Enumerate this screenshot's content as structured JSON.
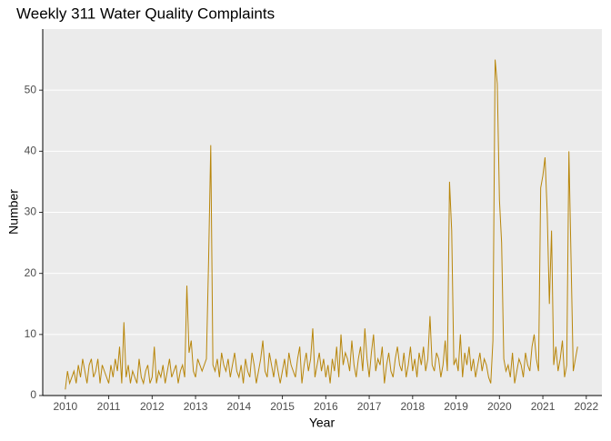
{
  "chart_data": {
    "type": "line",
    "title": "Weekly 311 Water Quality Complaints",
    "xlabel": "Year",
    "ylabel": "Number",
    "x": [
      2010.0,
      2010.05,
      2010.1,
      2010.15,
      2010.2,
      2010.25,
      2010.3,
      2010.35,
      2010.4,
      2010.45,
      2010.5,
      2010.55,
      2010.6,
      2010.65,
      2010.7,
      2010.75,
      2010.8,
      2010.85,
      2010.9,
      2010.95,
      2011.0,
      2011.05,
      2011.1,
      2011.15,
      2011.2,
      2011.25,
      2011.3,
      2011.35,
      2011.4,
      2011.45,
      2011.5,
      2011.55,
      2011.6,
      2011.65,
      2011.7,
      2011.75,
      2011.8,
      2011.85,
      2011.9,
      2011.95,
      2012.0,
      2012.05,
      2012.1,
      2012.15,
      2012.2,
      2012.25,
      2012.3,
      2012.35,
      2012.4,
      2012.45,
      2012.5,
      2012.55,
      2012.6,
      2012.65,
      2012.7,
      2012.75,
      2012.8,
      2012.85,
      2012.9,
      2012.95,
      2013.0,
      2013.05,
      2013.1,
      2013.15,
      2013.2,
      2013.25,
      2013.3,
      2013.35,
      2013.4,
      2013.45,
      2013.5,
      2013.55,
      2013.6,
      2013.65,
      2013.7,
      2013.75,
      2013.8,
      2013.85,
      2013.9,
      2013.95,
      2014.0,
      2014.05,
      2014.1,
      2014.15,
      2014.2,
      2014.25,
      2014.3,
      2014.35,
      2014.4,
      2014.45,
      2014.5,
      2014.55,
      2014.6,
      2014.65,
      2014.7,
      2014.75,
      2014.8,
      2014.85,
      2014.9,
      2014.95,
      2015.0,
      2015.05,
      2015.1,
      2015.15,
      2015.2,
      2015.25,
      2015.3,
      2015.35,
      2015.4,
      2015.45,
      2015.5,
      2015.55,
      2015.6,
      2015.65,
      2015.7,
      2015.75,
      2015.8,
      2015.85,
      2015.9,
      2015.95,
      2016.0,
      2016.05,
      2016.1,
      2016.15,
      2016.2,
      2016.25,
      2016.3,
      2016.35,
      2016.4,
      2016.45,
      2016.5,
      2016.55,
      2016.6,
      2016.65,
      2016.7,
      2016.75,
      2016.8,
      2016.85,
      2016.9,
      2016.95,
      2017.0,
      2017.05,
      2017.1,
      2017.15,
      2017.2,
      2017.25,
      2017.3,
      2017.35,
      2017.4,
      2017.45,
      2017.5,
      2017.55,
      2017.6,
      2017.65,
      2017.7,
      2017.75,
      2017.8,
      2017.85,
      2017.9,
      2017.95,
      2018.0,
      2018.05,
      2018.1,
      2018.15,
      2018.2,
      2018.25,
      2018.3,
      2018.35,
      2018.4,
      2018.45,
      2018.5,
      2018.55,
      2018.6,
      2018.65,
      2018.7,
      2018.75,
      2018.8,
      2018.85,
      2018.9,
      2018.95,
      2019.0,
      2019.05,
      2019.1,
      2019.15,
      2019.2,
      2019.25,
      2019.3,
      2019.35,
      2019.4,
      2019.45,
      2019.5,
      2019.55,
      2019.6,
      2019.65,
      2019.7,
      2019.75,
      2019.8,
      2019.85,
      2019.9,
      2019.95,
      2020.0,
      2020.05,
      2020.1,
      2020.15,
      2020.2,
      2020.25,
      2020.3,
      2020.35,
      2020.4,
      2020.45,
      2020.5,
      2020.55,
      2020.6,
      2020.65,
      2020.7,
      2020.75,
      2020.8,
      2020.85,
      2020.9,
      2020.95,
      2021.0,
      2021.05,
      2021.1,
      2021.15,
      2021.2,
      2021.25,
      2021.3,
      2021.35,
      2021.4,
      2021.45,
      2021.5,
      2021.55,
      2021.6,
      2021.65,
      2021.7,
      2021.75,
      2021.8
    ],
    "series": [
      {
        "name": "Number",
        "color": "#b8860b",
        "values": [
          1,
          4,
          2,
          3,
          4,
          2,
          5,
          3,
          6,
          4,
          2,
          5,
          6,
          3,
          4,
          6,
          2,
          5,
          4,
          3,
          2,
          5,
          3,
          6,
          4,
          8,
          2,
          12,
          3,
          5,
          2,
          4,
          3,
          2,
          6,
          3,
          2,
          4,
          5,
          2,
          3,
          8,
          2,
          4,
          3,
          5,
          2,
          4,
          6,
          3,
          4,
          5,
          2,
          4,
          5,
          3,
          18,
          7,
          9,
          4,
          3,
          6,
          5,
          4,
          5,
          6,
          22,
          41,
          5,
          4,
          6,
          3,
          7,
          5,
          4,
          6,
          3,
          5,
          7,
          4,
          3,
          5,
          2,
          6,
          4,
          3,
          7,
          5,
          2,
          4,
          6,
          9,
          4,
          3,
          7,
          5,
          3,
          6,
          4,
          2,
          4,
          6,
          3,
          7,
          5,
          4,
          3,
          6,
          8,
          2,
          5,
          7,
          4,
          6,
          11,
          3,
          5,
          7,
          4,
          6,
          3,
          5,
          2,
          6,
          4,
          8,
          3,
          10,
          5,
          7,
          6,
          4,
          9,
          5,
          3,
          6,
          8,
          4,
          11,
          6,
          3,
          7,
          10,
          4,
          6,
          5,
          8,
          2,
          5,
          7,
          4,
          3,
          6,
          8,
          5,
          4,
          7,
          3,
          5,
          8,
          4,
          6,
          3,
          7,
          5,
          8,
          4,
          6,
          13,
          5,
          4,
          7,
          6,
          3,
          5,
          9,
          4,
          35,
          27,
          5,
          6,
          4,
          10,
          3,
          7,
          5,
          8,
          4,
          6,
          3,
          5,
          7,
          4,
          6,
          5,
          3,
          2,
          9,
          55,
          51,
          32,
          25,
          6,
          4,
          5,
          3,
          7,
          2,
          4,
          6,
          5,
          3,
          7,
          5,
          4,
          8,
          10,
          6,
          4,
          34,
          36,
          39,
          30,
          15,
          27,
          5,
          8,
          4,
          6,
          9,
          3,
          5,
          40,
          22,
          4,
          6,
          8
        ]
      }
    ],
    "xlim": [
      2009.48,
      2022.36
    ],
    "xticks": [
      2010,
      2011,
      2012,
      2013,
      2014,
      2015,
      2016,
      2017,
      2018,
      2019,
      2020,
      2021,
      2022
    ],
    "ylim": [
      0,
      60
    ],
    "yticks": [
      0,
      10,
      20,
      30,
      40,
      50
    ],
    "grid": true
  }
}
